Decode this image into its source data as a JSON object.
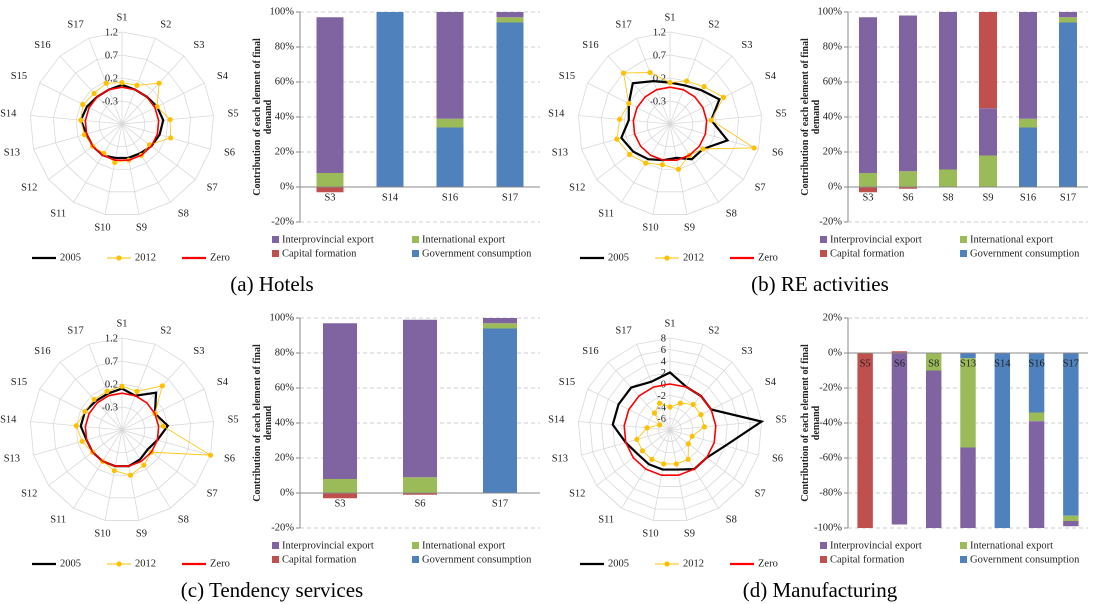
{
  "captions": [
    "(a) Hotels",
    "(b) RE activities",
    "(c) Tendency services",
    "(d) Manufacturing"
  ],
  "chart_data": [
    {
      "type": "radar",
      "categories": [
        "S1",
        "S2",
        "S3",
        "S4",
        "S5",
        "S6",
        "S7",
        "S8",
        "S9",
        "S10",
        "S11",
        "S12",
        "S13",
        "S14",
        "S15",
        "S16",
        "S17"
      ],
      "ylim": [
        -0.8,
        1.2
      ],
      "yticks": [
        1.2,
        0.7,
        0.2,
        -0.3
      ],
      "legend": "bottom",
      "series": [
        {
          "name": "2005",
          "color": "#000000",
          "values": [
            0.05,
            0.0,
            0.0,
            0.05,
            0.1,
            0.05,
            0.0,
            -0.05,
            -0.05,
            -0.05,
            0.0,
            0.0,
            0.0,
            0.1,
            0.05,
            0.0,
            0.0
          ]
        },
        {
          "name": "2012",
          "color": "#ffc000",
          "values": [
            0.1,
            0.1,
            0.4,
            0.05,
            0.25,
            0.3,
            -0.05,
            0.0,
            0.0,
            0.05,
            -0.05,
            0.0,
            0.05,
            0.1,
            0.15,
            0.1,
            0.15
          ]
        },
        {
          "name": "Zero",
          "color": "#ff0000",
          "values": [
            0,
            0,
            0,
            0,
            0,
            0,
            0,
            0,
            0,
            0,
            0,
            0,
            0,
            0,
            0,
            0,
            0
          ]
        }
      ]
    },
    {
      "type": "bar",
      "stacked": true,
      "ylabel": "Contribution of each element of final demand",
      "categories": [
        "S3",
        "S14",
        "S16",
        "S17"
      ],
      "ylim": [
        -20,
        100
      ],
      "yticks": [
        {
          "value": -20,
          "label": "-20%"
        },
        {
          "value": 0,
          "label": "0%"
        },
        {
          "value": 20,
          "label": "20%"
        },
        {
          "value": 40,
          "label": "40%"
        },
        {
          "value": 60,
          "label": "60%"
        },
        {
          "value": 80,
          "label": "80%"
        },
        {
          "value": 100,
          "label": "100%"
        }
      ],
      "grid": true,
      "legend": "bottom",
      "series": [
        {
          "name": "Interprovincial export",
          "color": "#8064a2",
          "values": [
            89,
            0,
            61,
            3
          ]
        },
        {
          "name": "International export",
          "color": "#9bbb59",
          "values": [
            8,
            0,
            5,
            3
          ]
        },
        {
          "name": "Capital formation",
          "color": "#c0504d",
          "values": [
            -3,
            0,
            0,
            0
          ]
        },
        {
          "name": "Government consumption",
          "color": "#4f81bd",
          "values": [
            0,
            100,
            34,
            94
          ]
        }
      ]
    },
    {
      "type": "radar",
      "categories": [
        "S1",
        "S2",
        "S3",
        "S4",
        "S5",
        "S6",
        "S7",
        "S8",
        "S9",
        "S10",
        "S11",
        "S12",
        "S13",
        "S14",
        "S15",
        "S16",
        "S17"
      ],
      "ylim": [
        -0.8,
        1.2
      ],
      "yticks": [
        1.2,
        0.7,
        0.2,
        -0.3
      ],
      "legend": "bottom",
      "series": [
        {
          "name": "2005",
          "color": "#000000",
          "values": [
            0.1,
            0.1,
            0.2,
            0.4,
            0.1,
            0.5,
            0.1,
            0.1,
            -0.05,
            0.0,
            0.1,
            0.2,
            0.3,
            0.1,
            0.2,
            0.4,
            0.2
          ]
        },
        {
          "name": "2012",
          "color": "#ffc000",
          "values": [
            0.1,
            0.2,
            0.3,
            0.5,
            0.1,
            1.1,
            0.1,
            0.0,
            0.2,
            0.1,
            0.2,
            0.3,
            0.4,
            0.3,
            0.2,
            0.7,
            0.4
          ]
        },
        {
          "name": "Zero",
          "color": "#ff0000",
          "values": [
            0,
            0,
            0,
            0,
            0,
            0,
            0,
            0,
            0,
            0,
            0,
            0,
            0,
            0,
            0,
            0,
            0
          ]
        }
      ]
    },
    {
      "type": "bar",
      "stacked": true,
      "ylabel": "Contribution of each element of final demand",
      "categories": [
        "S3",
        "S6",
        "S8",
        "S9",
        "S16",
        "S17"
      ],
      "ylim": [
        -20,
        100
      ],
      "yticks": [
        {
          "value": -20,
          "label": "-20%"
        },
        {
          "value": 0,
          "label": "0%"
        },
        {
          "value": 20,
          "label": "20%"
        },
        {
          "value": 40,
          "label": "40%"
        },
        {
          "value": 60,
          "label": "60%"
        },
        {
          "value": 80,
          "label": "80%"
        },
        {
          "value": 100,
          "label": "100%"
        }
      ],
      "grid": true,
      "legend": "bottom",
      "series": [
        {
          "name": "Interprovincial export",
          "color": "#8064a2",
          "values": [
            89,
            89,
            90,
            27,
            61,
            3
          ]
        },
        {
          "name": "International export",
          "color": "#9bbb59",
          "values": [
            8,
            9,
            10,
            18,
            5,
            3
          ]
        },
        {
          "name": "Capital formation",
          "color": "#c0504d",
          "values": [
            -3,
            -1,
            0,
            55,
            0,
            0
          ]
        },
        {
          "name": "Government consumption",
          "color": "#4f81bd",
          "values": [
            0,
            0,
            0,
            0,
            34,
            94
          ]
        }
      ]
    },
    {
      "type": "radar",
      "categories": [
        "S1",
        "S2",
        "S3",
        "S4",
        "S5",
        "S6",
        "S7",
        "S8",
        "S9",
        "S10",
        "S11",
        "S12",
        "S13",
        "S14",
        "S15",
        "S16",
        "S17"
      ],
      "ylim": [
        -0.8,
        1.2
      ],
      "yticks": [
        1.2,
        0.7,
        0.2,
        -0.3
      ],
      "legend": "bottom",
      "series": [
        {
          "name": "2005",
          "color": "#000000",
          "values": [
            0.1,
            0.0,
            0.3,
            0.0,
            0.2,
            0.0,
            -0.1,
            -0.05,
            0.0,
            0.0,
            0.0,
            0.0,
            0.0,
            0.1,
            0.1,
            0.05,
            0.05
          ]
        },
        {
          "name": "2012",
          "color": "#ffc000",
          "values": [
            0.15,
            0.1,
            0.5,
            0.0,
            0.1,
            1.2,
            0.0,
            0.1,
            0.2,
            0.1,
            0.0,
            0.0,
            0.1,
            0.2,
            0.1,
            0.1,
            0.1
          ]
        },
        {
          "name": "Zero",
          "color": "#ff0000",
          "values": [
            0,
            0,
            0,
            0,
            0,
            0,
            0,
            0,
            0,
            0,
            0,
            0,
            0,
            0,
            0,
            0,
            0
          ]
        }
      ]
    },
    {
      "type": "bar",
      "stacked": true,
      "ylabel": "Contribution of each element of final demand",
      "categories": [
        "S3",
        "S6",
        "S17"
      ],
      "ylim": [
        -20,
        100
      ],
      "yticks": [
        {
          "value": -20,
          "label": "-20%"
        },
        {
          "value": 0,
          "label": "0%"
        },
        {
          "value": 20,
          "label": "20%"
        },
        {
          "value": 40,
          "label": "40%"
        },
        {
          "value": 60,
          "label": "60%"
        },
        {
          "value": 80,
          "label": "80%"
        },
        {
          "value": 100,
          "label": "100%"
        }
      ],
      "grid": true,
      "legend": "bottom",
      "series": [
        {
          "name": "Interprovincial export",
          "color": "#8064a2",
          "values": [
            89,
            90,
            3
          ]
        },
        {
          "name": "International export",
          "color": "#9bbb59",
          "values": [
            8,
            9,
            3
          ]
        },
        {
          "name": "Capital formation",
          "color": "#c0504d",
          "values": [
            -3,
            -1,
            0
          ]
        },
        {
          "name": "Government consumption",
          "color": "#4f81bd",
          "values": [
            0,
            0,
            94
          ]
        }
      ]
    },
    {
      "type": "radar",
      "categories": [
        "S1",
        "S2",
        "S3",
        "S4",
        "S5",
        "S6",
        "S7",
        "S8",
        "S9",
        "S10",
        "S11",
        "S12",
        "S13",
        "S14",
        "S15",
        "S16",
        "S17"
      ],
      "ylim": [
        -8,
        8
      ],
      "yticks": [
        8,
        6,
        4,
        2,
        0,
        -2,
        -4,
        -6
      ],
      "legend": "bottom",
      "series": [
        {
          "name": "2005",
          "color": "#000000",
          "values": [
            2,
            0,
            0,
            0,
            8,
            2,
            0,
            0,
            -1,
            -1,
            -1,
            -1,
            0,
            2,
            2,
            2,
            1
          ]
        },
        {
          "name": "2012",
          "color": "#ffc000",
          "values": [
            -4,
            -3,
            -2,
            -2,
            -2,
            -4,
            -4,
            -2,
            -2,
            -2,
            -2,
            -2,
            -2,
            -4,
            -6,
            -4,
            -3
          ]
        },
        {
          "name": "Zero",
          "color": "#ff0000",
          "values": [
            0,
            0,
            0,
            0,
            0,
            0,
            0,
            0,
            0,
            0,
            0,
            0,
            0,
            0,
            0,
            0,
            0
          ]
        }
      ]
    },
    {
      "type": "bar",
      "stacked": true,
      "ylabel": "Contribution of each element of final demand",
      "categories": [
        "S5",
        "S6",
        "S8",
        "S13",
        "S14",
        "S16",
        "S17"
      ],
      "ylim": [
        -100,
        20
      ],
      "yticks": [
        {
          "value": -100,
          "label": "-100%"
        },
        {
          "value": -80,
          "label": "-80%"
        },
        {
          "value": -60,
          "label": "-60%"
        },
        {
          "value": -40,
          "label": "-40%"
        },
        {
          "value": -20,
          "label": "-20%"
        },
        {
          "value": 0,
          "label": "0%"
        },
        {
          "value": 20,
          "label": "20%"
        }
      ],
      "grid": true,
      "legend": "bottom",
      "series": [
        {
          "name": "Interprovincial export",
          "color": "#8064a2",
          "values": [
            0,
            -98,
            -90,
            -46,
            0,
            -61,
            -3
          ]
        },
        {
          "name": "International export",
          "color": "#9bbb59",
          "values": [
            0,
            0,
            -10,
            -51,
            0,
            -5,
            -3
          ]
        },
        {
          "name": "Capital formation",
          "color": "#c0504d",
          "values": [
            -100,
            1,
            0,
            0,
            0,
            0,
            0
          ]
        },
        {
          "name": "Government consumption",
          "color": "#4f81bd",
          "values": [
            0,
            0,
            0,
            -3,
            -100,
            -34,
            -93
          ]
        }
      ]
    }
  ]
}
